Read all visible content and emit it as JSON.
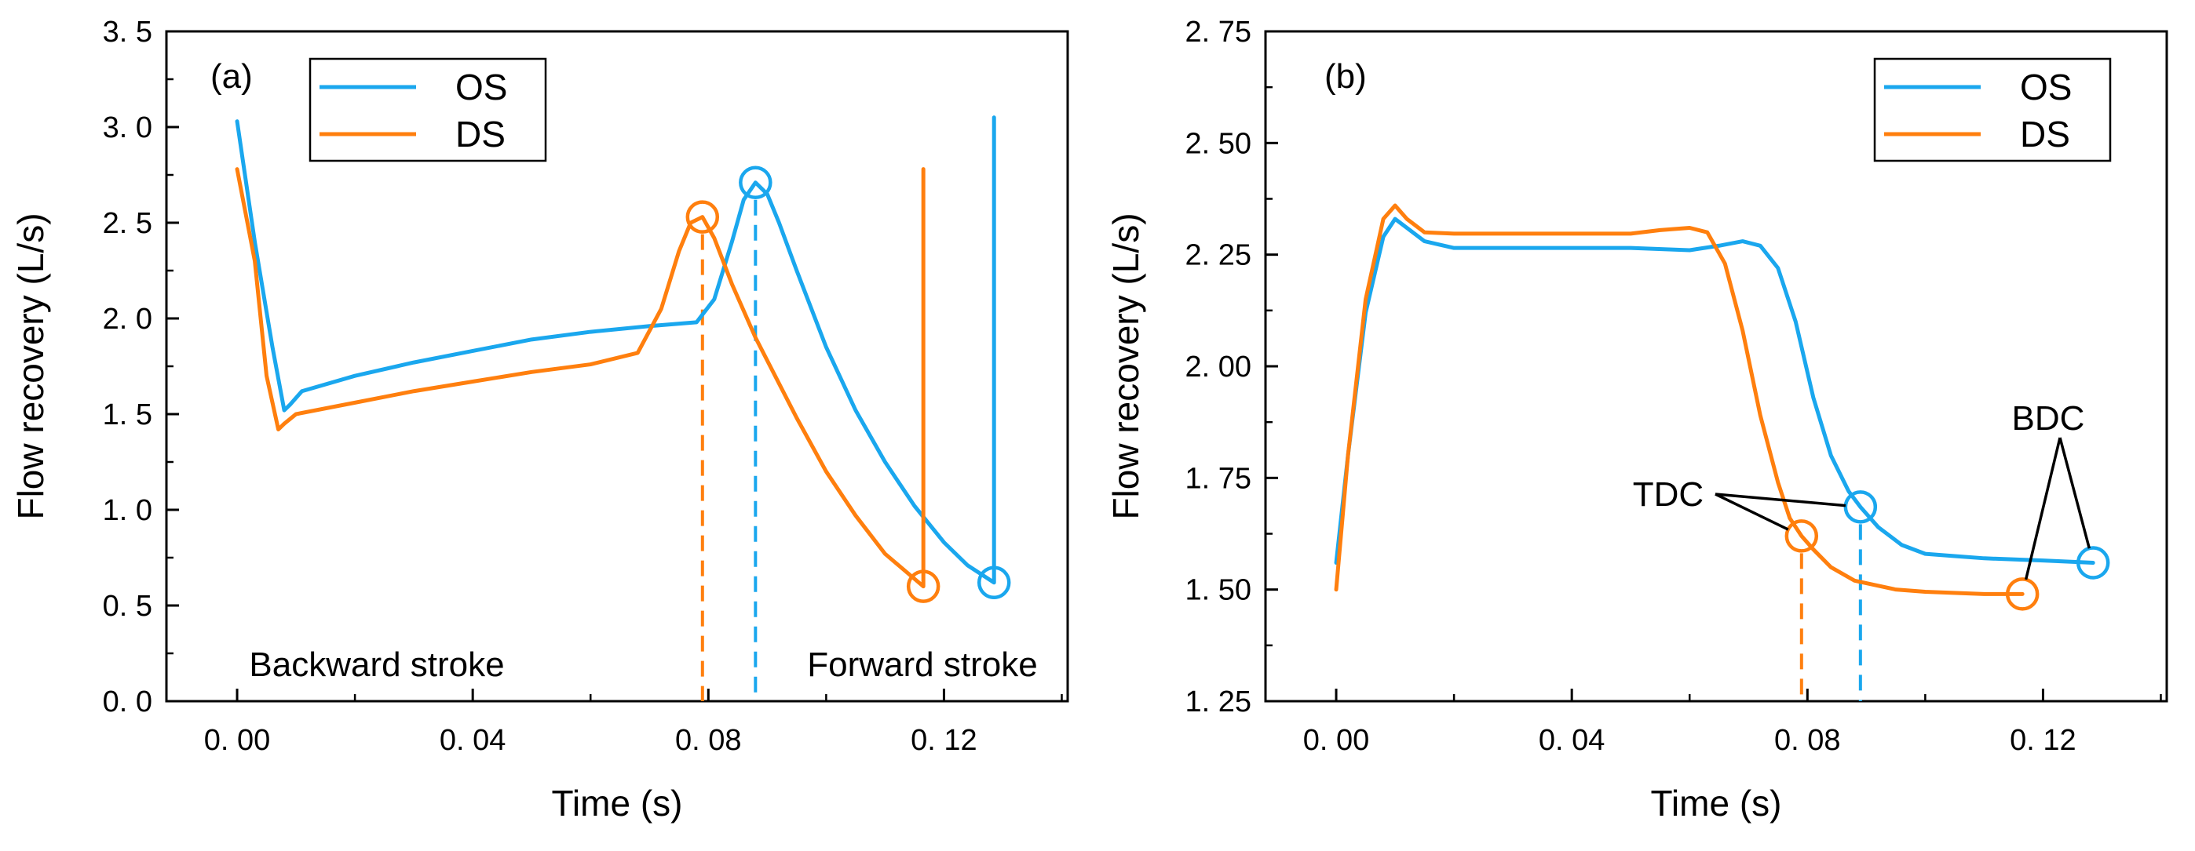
{
  "colors": {
    "OS": "#1aa7ee",
    "DS": "#ff7f0e",
    "axis": "#000000"
  },
  "chart_data": [
    {
      "type": "line",
      "panel_label": "(a)",
      "xlabel": "Time (s)",
      "ylabel": "Flow recovery (L/s)",
      "xlim": [
        -0.012,
        0.141
      ],
      "ylim": [
        0.0,
        3.5
      ],
      "xticks": [
        0.0,
        0.04,
        0.08,
        0.12
      ],
      "xtick_labels": [
        "0. 00",
        "0. 04",
        "0. 08",
        "0. 12"
      ],
      "yticks": [
        0.0,
        0.5,
        1.0,
        1.5,
        2.0,
        2.5,
        3.0,
        3.5
      ],
      "ytick_labels": [
        "0. 0",
        "0. 5",
        "1. 0",
        "1. 5",
        "2. 0",
        "2. 5",
        "3. 0",
        "3. 5"
      ],
      "legend": [
        "OS",
        "DS"
      ],
      "legend_position": "top-left",
      "series": [
        {
          "name": "OS",
          "x": [
            0.0,
            0.003,
            0.006,
            0.008,
            0.009,
            0.011,
            0.02,
            0.03,
            0.04,
            0.05,
            0.06,
            0.07,
            0.078,
            0.081,
            0.084,
            0.086,
            0.088,
            0.09,
            0.092,
            0.095,
            0.1,
            0.105,
            0.11,
            0.115,
            0.12,
            0.124,
            0.1285,
            0.1285
          ],
          "values": [
            3.03,
            2.4,
            1.85,
            1.52,
            1.55,
            1.62,
            1.7,
            1.77,
            1.83,
            1.89,
            1.93,
            1.96,
            1.98,
            2.1,
            2.4,
            2.62,
            2.71,
            2.65,
            2.5,
            2.25,
            1.85,
            1.52,
            1.25,
            1.02,
            0.83,
            0.71,
            0.62,
            3.05
          ]
        },
        {
          "name": "DS",
          "x": [
            0.0,
            0.003,
            0.005,
            0.007,
            0.008,
            0.01,
            0.02,
            0.03,
            0.04,
            0.05,
            0.06,
            0.068,
            0.072,
            0.075,
            0.077,
            0.079,
            0.081,
            0.084,
            0.088,
            0.095,
            0.1,
            0.105,
            0.11,
            0.1165,
            0.1165
          ],
          "values": [
            2.78,
            2.3,
            1.7,
            1.42,
            1.45,
            1.5,
            1.56,
            1.62,
            1.67,
            1.72,
            1.76,
            1.82,
            2.05,
            2.35,
            2.5,
            2.53,
            2.42,
            2.18,
            1.9,
            1.48,
            1.2,
            0.97,
            0.77,
            0.6,
            2.78
          ]
        }
      ],
      "markers": [
        {
          "series": "OS",
          "x": 0.088,
          "y": 2.71,
          "vline": true
        },
        {
          "series": "OS",
          "x": 0.1285,
          "y": 0.62,
          "vline": false
        },
        {
          "series": "DS",
          "x": 0.079,
          "y": 2.53,
          "vline": true
        },
        {
          "series": "DS",
          "x": 0.1165,
          "y": 0.6,
          "vline": false
        }
      ],
      "annotations": [
        {
          "text": "Backward stroke",
          "x": 0.038,
          "y": 0.15
        },
        {
          "text": "Forward stroke",
          "x": 0.1165,
          "y": 0.15
        }
      ]
    },
    {
      "type": "line",
      "panel_label": "(b)",
      "xlabel": "Time (s)",
      "ylabel": "Flow recovery (L/s)",
      "xlim": [
        -0.012,
        0.141
      ],
      "ylim": [
        1.25,
        2.75
      ],
      "xticks": [
        0.0,
        0.04,
        0.08,
        0.12
      ],
      "xtick_labels": [
        "0. 00",
        "0. 04",
        "0. 08",
        "0. 12"
      ],
      "yticks": [
        1.25,
        1.5,
        1.75,
        2.0,
        2.25,
        2.5,
        2.75
      ],
      "ytick_labels": [
        "1. 25",
        "1. 50",
        "1. 75",
        "2. 00",
        "2. 25",
        "2. 50",
        "2. 75"
      ],
      "legend": [
        "OS",
        "DS"
      ],
      "legend_position": "top-right",
      "series": [
        {
          "name": "OS",
          "x": [
            0.0,
            0.002,
            0.005,
            0.008,
            0.01,
            0.012,
            0.015,
            0.02,
            0.03,
            0.04,
            0.05,
            0.06,
            0.065,
            0.069,
            0.072,
            0.075,
            0.078,
            0.081,
            0.084,
            0.087,
            0.089,
            0.092,
            0.096,
            0.1,
            0.105,
            0.11,
            0.12,
            0.1285
          ],
          "values": [
            1.56,
            1.8,
            2.12,
            2.29,
            2.33,
            2.31,
            2.28,
            2.265,
            2.265,
            2.265,
            2.265,
            2.26,
            2.27,
            2.28,
            2.27,
            2.22,
            2.1,
            1.93,
            1.8,
            1.72,
            1.685,
            1.64,
            1.6,
            1.58,
            1.575,
            1.57,
            1.565,
            1.56
          ]
        },
        {
          "name": "DS",
          "x": [
            0.0,
            0.002,
            0.005,
            0.008,
            0.01,
            0.012,
            0.015,
            0.02,
            0.03,
            0.04,
            0.05,
            0.055,
            0.06,
            0.063,
            0.066,
            0.069,
            0.072,
            0.075,
            0.077,
            0.079,
            0.081,
            0.084,
            0.088,
            0.095,
            0.1,
            0.11,
            0.1165
          ],
          "values": [
            1.5,
            1.8,
            2.15,
            2.33,
            2.36,
            2.33,
            2.3,
            2.297,
            2.297,
            2.297,
            2.297,
            2.305,
            2.31,
            2.3,
            2.23,
            2.08,
            1.89,
            1.74,
            1.66,
            1.62,
            1.59,
            1.55,
            1.52,
            1.5,
            1.495,
            1.49,
            1.49
          ]
        }
      ],
      "markers": [
        {
          "series": "OS",
          "x": 0.089,
          "y": 1.685,
          "vline": true
        },
        {
          "series": "OS",
          "x": 0.1285,
          "y": 1.56,
          "vline": false
        },
        {
          "series": "DS",
          "x": 0.079,
          "y": 1.62,
          "vline": true
        },
        {
          "series": "DS",
          "x": 0.1165,
          "y": 1.49,
          "vline": false
        }
      ],
      "annotations": [
        {
          "text": "TDC",
          "x": 0.063,
          "y": 1.83,
          "points_to": [
            [
              0.089,
              1.685
            ],
            [
              0.079,
              1.62
            ]
          ]
        },
        {
          "text": "BDC",
          "x": 0.1225,
          "y": 1.92,
          "points_to": [
            [
              0.1285,
              1.56
            ],
            [
              0.1165,
              1.49
            ]
          ]
        }
      ]
    }
  ]
}
